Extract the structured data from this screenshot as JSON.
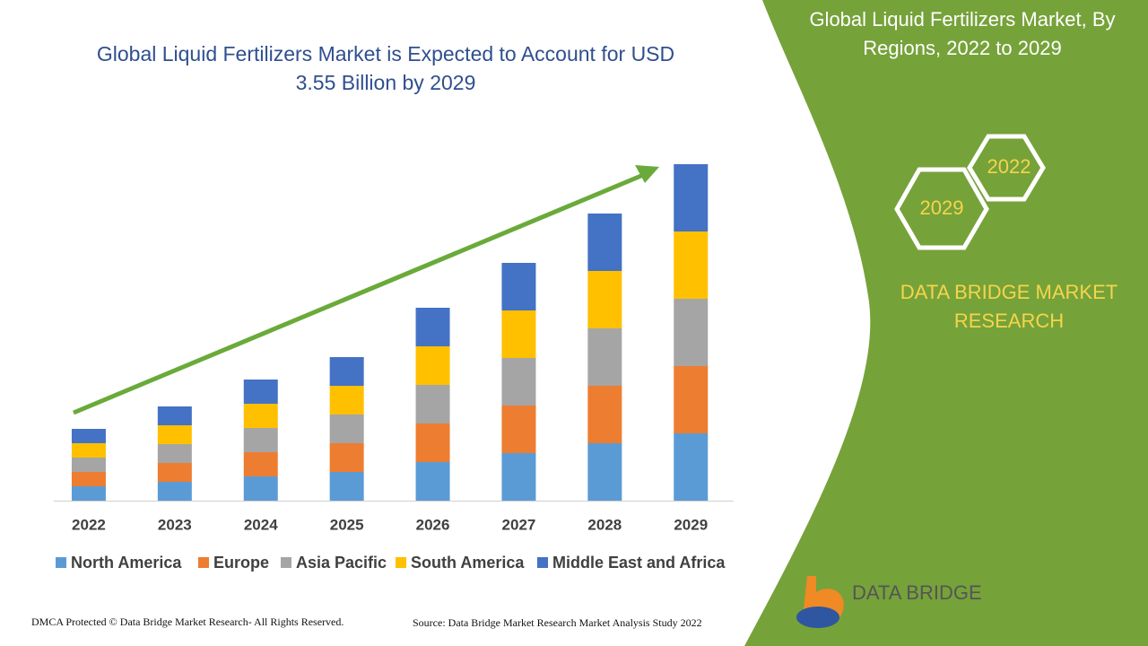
{
  "chart_data": {
    "type": "bar",
    "stacked": true,
    "title": "Global Liquid Fertilizers Market is Expected to Account for USD 3.55 Billion by 2029",
    "categories": [
      "2022",
      "2023",
      "2024",
      "2025",
      "2026",
      "2027",
      "2028",
      "2029"
    ],
    "series": [
      {
        "name": "North America",
        "color": "#5b9bd5",
        "values": [
          16,
          21,
          27,
          32,
          43,
          53,
          64,
          75
        ]
      },
      {
        "name": "Europe",
        "color": "#ed7d31",
        "values": [
          16,
          21,
          27,
          32,
          43,
          53,
          64,
          75
        ]
      },
      {
        "name": "Asia Pacific",
        "color": "#a5a5a5",
        "values": [
          16,
          21,
          27,
          32,
          43,
          53,
          64,
          75
        ]
      },
      {
        "name": "South America",
        "color": "#ffc000",
        "values": [
          16,
          21,
          27,
          32,
          43,
          53,
          64,
          75
        ]
      },
      {
        "name": "Middle East and Africa",
        "color": "#4472c4",
        "values": [
          16,
          21,
          27,
          32,
          43,
          53,
          64,
          75
        ]
      }
    ],
    "ylim": [
      0,
      400
    ]
  },
  "panel": {
    "title": "Global Liquid Fertilizers Market, By Regions, 2022 to 2029",
    "hexagons": [
      "2022",
      "2029"
    ],
    "brand": "DATA BRIDGE MARKET RESEARCH",
    "logo": "DATA BRIDGE"
  },
  "footer": {
    "copyright": "DMCA Protected © Data Bridge Market Research- All Rights Reserved.",
    "source": "Source: Data Bridge Market Research Market Analysis Study 2022"
  }
}
